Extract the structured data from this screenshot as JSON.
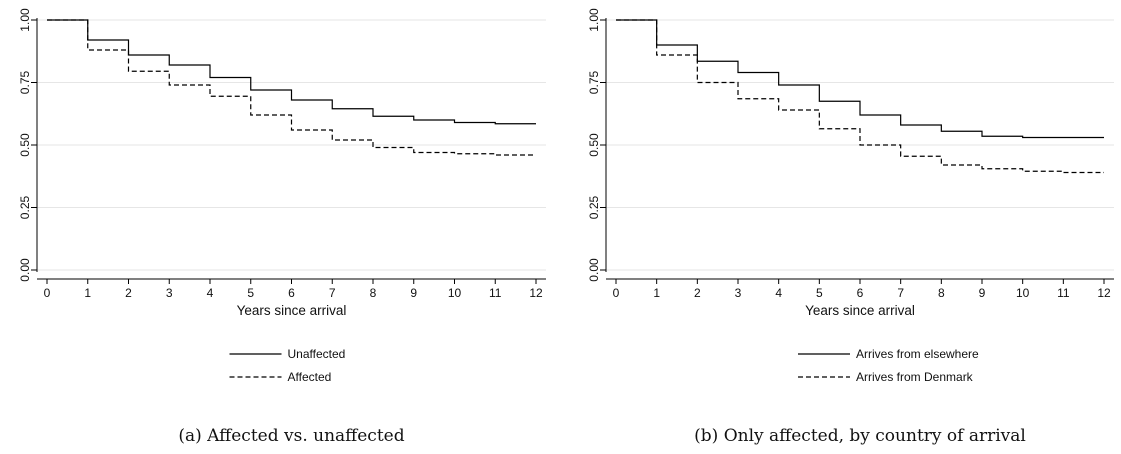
{
  "chart_data": [
    {
      "type": "line",
      "step": true,
      "caption": "(a) Affected vs. unaffected",
      "xlabel": "Years since arrival",
      "ylabel": "",
      "xlim": [
        0,
        12
      ],
      "ylim": [
        0,
        1
      ],
      "xticks": [
        "0",
        "1",
        "2",
        "3",
        "4",
        "5",
        "6",
        "7",
        "8",
        "9",
        "10",
        "11",
        "12"
      ],
      "yticks": [
        "0.00",
        "0.25",
        "0.50",
        "0.75",
        "1.00"
      ],
      "grid": true,
      "legend_position": "bottom",
      "x": [
        0,
        1,
        2,
        3,
        4,
        5,
        6,
        7,
        8,
        9,
        10,
        11,
        12
      ],
      "series": [
        {
          "name": "Unaffected",
          "style": "solid",
          "values": [
            1.0,
            0.92,
            0.86,
            0.82,
            0.77,
            0.72,
            0.68,
            0.645,
            0.615,
            0.6,
            0.59,
            0.585,
            0.585
          ]
        },
        {
          "name": "Affected",
          "style": "dashed",
          "values": [
            1.0,
            0.88,
            0.795,
            0.74,
            0.695,
            0.62,
            0.56,
            0.52,
            0.49,
            0.47,
            0.465,
            0.46,
            0.46
          ]
        }
      ]
    },
    {
      "type": "line",
      "step": true,
      "caption": "(b) Only affected, by country of arrival",
      "xlabel": "Years since arrival",
      "ylabel": "",
      "xlim": [
        0,
        12
      ],
      "ylim": [
        0,
        1
      ],
      "xticks": [
        "0",
        "1",
        "2",
        "3",
        "4",
        "5",
        "6",
        "7",
        "8",
        "9",
        "10",
        "11",
        "12"
      ],
      "yticks": [
        "0.00",
        "0.25",
        "0.50",
        "0.75",
        "1.00"
      ],
      "grid": true,
      "legend_position": "bottom",
      "x": [
        0,
        1,
        2,
        3,
        4,
        5,
        6,
        7,
        8,
        9,
        10,
        11,
        12
      ],
      "series": [
        {
          "name": "Arrives from elsewhere",
          "style": "solid",
          "values": [
            1.0,
            0.9,
            0.835,
            0.79,
            0.74,
            0.675,
            0.62,
            0.58,
            0.555,
            0.535,
            0.53,
            0.53,
            0.53
          ]
        },
        {
          "name": "Arrives from Denmark",
          "style": "dashed",
          "values": [
            1.0,
            0.86,
            0.75,
            0.685,
            0.64,
            0.565,
            0.5,
            0.455,
            0.42,
            0.405,
            0.395,
            0.39,
            0.39
          ]
        }
      ]
    }
  ]
}
